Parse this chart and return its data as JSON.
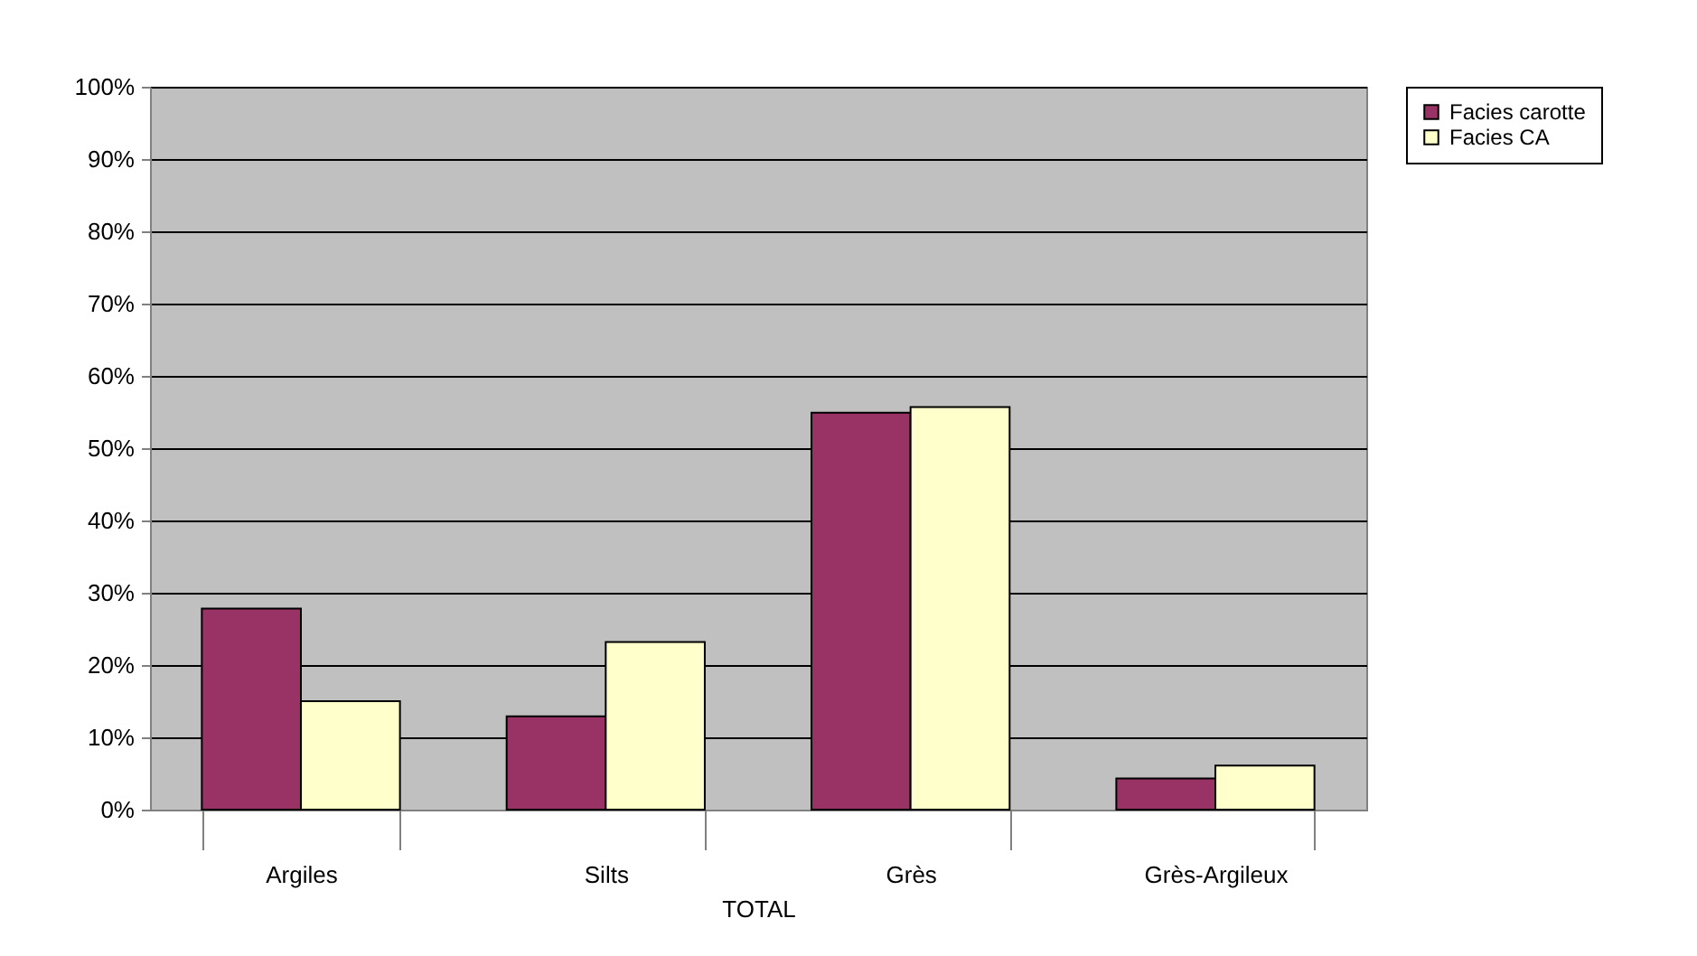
{
  "chart_data": {
    "type": "bar",
    "xlabel": "TOTAL",
    "categories": [
      "Argiles",
      "Silts",
      "Grès",
      "Grès-Argileux"
    ],
    "series": [
      {
        "name": "Facies carotte",
        "color": "#993366",
        "values": [
          27.8,
          12.9,
          54.9,
          4.3
        ]
      },
      {
        "name": "Facies CA",
        "color": "#ffffcc",
        "values": [
          15.0,
          23.2,
          55.7,
          6.1
        ]
      }
    ],
    "ylim": [
      0,
      100
    ],
    "yticks": [
      {
        "value": 0,
        "label": "0%"
      },
      {
        "value": 10,
        "label": "10%"
      },
      {
        "value": 20,
        "label": "20%"
      },
      {
        "value": 30,
        "label": "30%"
      },
      {
        "value": 40,
        "label": "40%"
      },
      {
        "value": 50,
        "label": "50%"
      },
      {
        "value": 60,
        "label": "60%"
      },
      {
        "value": 70,
        "label": "70%"
      },
      {
        "value": 80,
        "label": "80%"
      },
      {
        "value": 90,
        "label": "90%"
      },
      {
        "value": 100,
        "label": "100%"
      }
    ],
    "grid": "y",
    "legend": "right"
  }
}
